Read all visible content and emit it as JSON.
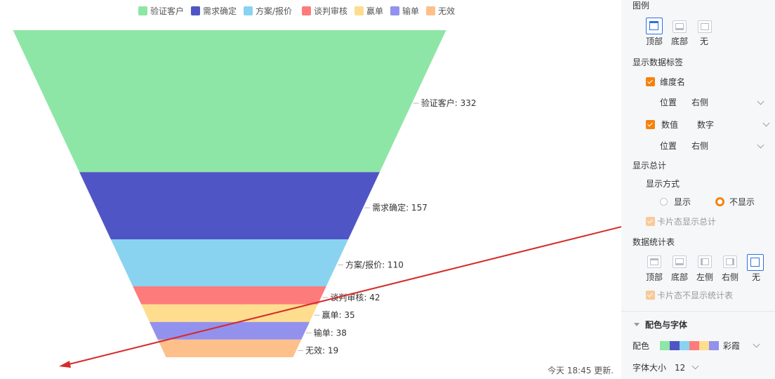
{
  "chart_data": {
    "type": "funnel",
    "legend_position": "top",
    "categories": [
      "验证客户",
      "需求确定",
      "方案/报价",
      "谈判审核",
      "赢单",
      "输单",
      "无效"
    ],
    "values": [
      332,
      157,
      110,
      42,
      35,
      38,
      19
    ],
    "colors": [
      "#8ee6a6",
      "#5055c6",
      "#89d3f0",
      "#fe7b7b",
      "#fedd8e",
      "#9391ee",
      "#fec08b"
    ],
    "data_labels": [
      "验证客户: 332",
      "需求确定: 157",
      "方案/报价: 110",
      "谈判审核: 42",
      "赢单: 35",
      "输单: 38",
      "无效: 19"
    ]
  },
  "footer": {
    "update_text": "今天 18:45 更新."
  },
  "panel": {
    "legend": {
      "title": "图例",
      "top": "顶部",
      "bottom": "底部",
      "none": "无"
    },
    "data_label": {
      "title": "显示数据标签",
      "dimension": "维度名",
      "position_label": "位置",
      "dimension_position": "右侧",
      "value": "数值",
      "value_format": "数字",
      "value_position": "右侧"
    },
    "total": {
      "title": "显示总计",
      "mode_label": "显示方式",
      "show": "显示",
      "hide": "不显示",
      "card_total": "卡片态显示总计"
    },
    "stats_table": {
      "title": "数据统计表",
      "top": "顶部",
      "bottom": "底部",
      "left": "左侧",
      "right": "右侧",
      "none": "无",
      "card_hide": "卡片态不显示统计表"
    },
    "color_font": {
      "title": "配色与字体",
      "color_label": "配色",
      "palette_name": "彩霞",
      "font_size_label": "字体大小",
      "font_size": "12"
    }
  }
}
